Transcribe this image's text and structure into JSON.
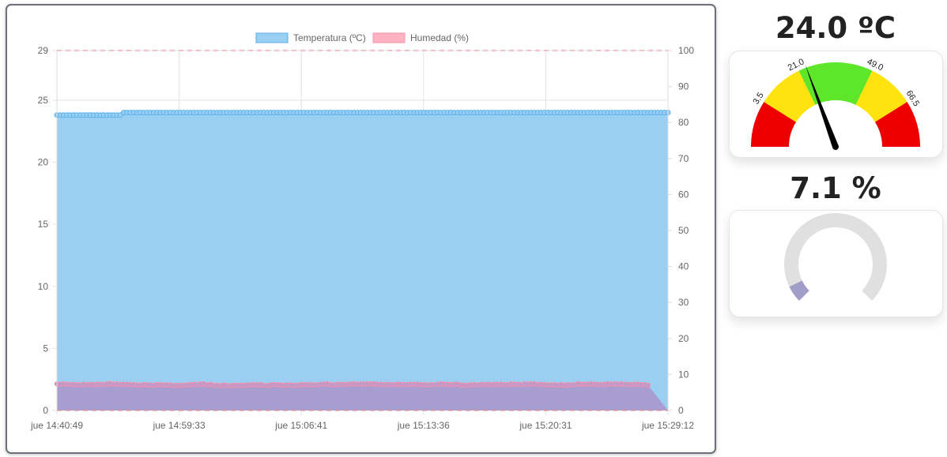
{
  "chart_data": {
    "type": "line",
    "x_ticks": [
      "jue 14:40:49",
      "jue 14:59:33",
      "jue 15:06:41",
      "jue 15:13:36",
      "jue 15:20:31",
      "jue 15:29:12"
    ],
    "y_left": {
      "ticks": [
        0,
        5,
        10,
        15,
        20,
        25,
        29
      ],
      "range": [
        0,
        29
      ]
    },
    "y_right": {
      "ticks": [
        0,
        10,
        20,
        30,
        40,
        50,
        60,
        70,
        80,
        90,
        100
      ],
      "range": [
        0,
        100
      ]
    },
    "legend_position": "top",
    "grid": true,
    "series": [
      {
        "name": "Temperatura (ºC)",
        "axis": "left",
        "fill": true,
        "color": "#5ab1ef",
        "fill_color": "#9bcff2",
        "point_count": 180,
        "values": [
          23.8,
          23.8,
          23.8,
          23.8,
          23.8,
          23.8,
          23.8,
          23.8,
          23.8,
          23.8,
          23.8,
          23.8,
          23.8,
          23.8,
          23.8,
          23.8,
          23.8,
          23.8,
          23.8,
          23.8,
          24.0,
          24.0,
          24.0,
          24.0,
          24.0,
          24.0,
          24.0,
          24.0,
          24.0,
          24.0,
          24.0,
          24.0,
          24.0,
          24.0,
          24.0,
          24.0,
          24.0,
          24.0,
          24.0,
          24.0,
          24.0,
          24.0,
          24.0,
          24.0,
          24.0,
          24.0,
          24.0,
          24.0,
          24.0,
          24.0,
          24.0,
          24.0,
          24.0,
          24.0,
          24.0,
          24.0,
          24.0,
          24.0,
          24.0,
          24.0,
          24.0,
          24.0,
          24.0,
          24.0,
          24.0,
          24.0,
          24.0,
          24.0,
          24.0,
          24.0,
          24.0,
          24.0,
          24.0,
          24.0,
          24.0,
          24.0,
          24.0,
          24.0,
          24.0,
          24.0,
          24.0,
          24.0,
          24.0,
          24.0,
          24.0,
          24.0,
          24.0,
          24.0,
          24.0,
          24.0,
          24.0,
          24.0,
          24.0,
          24.0,
          24.0,
          24.0,
          24.0,
          24.0,
          24.0,
          24.0,
          24.0,
          24.0,
          24.0,
          24.0,
          24.0,
          24.0,
          24.0,
          24.0,
          24.0,
          24.0,
          24.0,
          24.0,
          24.0,
          24.0,
          24.0,
          24.0,
          24.0,
          24.0,
          24.0,
          24.0,
          24.0,
          24.0,
          24.0,
          24.0,
          24.0,
          24.0,
          24.0,
          24.0,
          24.0,
          24.0,
          24.0,
          24.0,
          24.0,
          24.0,
          24.0,
          24.0,
          24.0,
          24.0,
          24.0,
          24.0,
          24.0,
          24.0,
          24.0,
          24.0,
          24.0,
          24.0,
          24.0,
          24.0,
          24.0,
          24.0,
          24.0,
          24.0,
          24.0,
          24.0,
          24.0,
          24.0,
          24.0,
          24.0,
          24.0,
          24.0,
          24.0,
          24.0,
          24.0,
          24.0,
          24.0,
          24.0,
          24.0,
          24.0,
          24.0,
          24.0,
          24.0,
          24.0,
          24.0,
          24.0,
          24.0,
          24.0,
          24.0,
          24.0,
          24.0,
          24.0,
          24.0,
          24.0,
          24.0,
          24.0
        ]
      },
      {
        "name": "Humedad (%)",
        "axis": "right",
        "fill": true,
        "color": "#ff8fa3",
        "fill_color": "#a79dd1",
        "point_count": 180,
        "values": [
          7.4,
          7.3,
          7.4,
          7.3,
          7.2,
          7.3,
          7.2,
          7.1,
          7.3,
          7.2,
          7.3,
          7.2,
          7.3,
          7.3,
          7.2,
          7.4,
          7.5,
          7.3,
          7.4,
          7.2,
          7.3,
          7.3,
          7.2,
          7.2,
          7.1,
          7.0,
          7.2,
          7.1,
          7.1,
          7.0,
          7.2,
          7.2,
          7.1,
          7.1,
          7.1,
          6.9,
          7.0,
          7.0,
          7.0,
          7.1,
          7.2,
          7.3,
          7.2,
          7.4,
          7.4,
          7.1,
          7.3,
          7.0,
          7.0,
          6.9,
          7.1,
          6.9,
          6.9,
          7.0,
          7.0,
          7.0,
          7.0,
          7.1,
          7.1,
          7.2,
          7.1,
          7.2,
          7.0,
          6.9,
          7.1,
          7.2,
          7.2,
          7.1,
          7.0,
          7.1,
          7.1,
          7.0,
          7.0,
          7.2,
          7.2,
          7.2,
          7.2,
          7.1,
          7.1,
          7.3,
          7.3,
          7.4,
          7.2,
          7.1,
          7.3,
          7.3,
          7.2,
          7.3,
          7.4,
          7.4,
          7.3,
          7.4,
          7.3,
          7.4,
          7.4,
          7.4,
          7.3,
          7.3,
          7.2,
          7.3,
          7.2,
          7.2,
          7.3,
          7.3,
          7.2,
          7.2,
          7.3,
          7.3,
          7.3,
          7.2,
          7.2,
          7.1,
          7.2,
          7.1,
          7.3,
          7.4,
          7.3,
          7.3,
          7.2,
          7.3,
          7.3,
          7.1,
          7.0,
          7.0,
          7.2,
          7.2,
          7.1,
          7.3,
          7.2,
          7.3,
          7.2,
          7.3,
          7.3,
          7.3,
          7.2,
          7.2,
          7.4,
          7.3,
          7.3,
          7.2,
          7.4,
          7.3,
          7.4,
          7.4,
          7.2,
          7.3,
          7.2,
          7.1,
          7.1,
          7.2,
          7.0,
          7.2,
          7.0,
          7.2,
          7.1,
          7.2,
          7.4,
          7.3,
          7.3,
          7.3,
          7.4,
          7.3,
          7.3,
          7.2,
          7.3,
          7.4,
          7.3,
          7.4,
          7.3,
          7.4,
          7.3,
          7.3,
          7.2,
          7.3,
          7.3,
          7.2,
          7.2,
          7.0
        ]
      }
    ],
    "reference_lines_color": "#e88a8a"
  },
  "readouts": {
    "temperature": "24.0 ºC",
    "humidity": "7.1 %"
  },
  "gauge_temperature": {
    "value": 24.0,
    "min": -14.0,
    "max": 84.0,
    "bands": [
      {
        "from": -14.0,
        "to": 3.5,
        "color": "#ee0000"
      },
      {
        "from": 3.5,
        "to": 21.0,
        "color": "#ffe30f"
      },
      {
        "from": 21.0,
        "to": 49.0,
        "color": "#5de62a"
      },
      {
        "from": 49.0,
        "to": 66.5,
        "color": "#ffe30f"
      },
      {
        "from": 66.5,
        "to": 84.0,
        "color": "#ee0000"
      }
    ],
    "labels": [
      "3.5",
      "21.0",
      "49.0",
      "66.5"
    ],
    "needle_color": "#000000"
  },
  "gauge_humidity": {
    "value": 7.1,
    "min": 0,
    "max": 100,
    "track_color": "#e0e0e0",
    "fill_color": "#a19cc8"
  }
}
